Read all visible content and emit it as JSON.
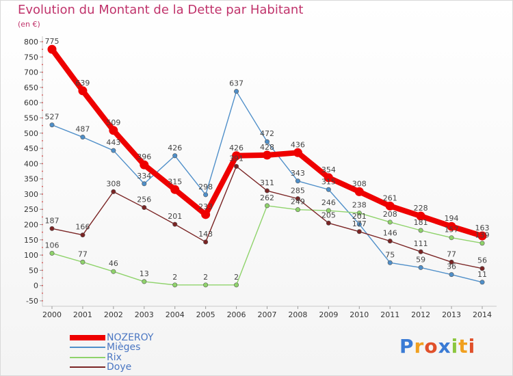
{
  "chart_data": {
    "type": "line",
    "title": "Evolution du Montant de la Dette par Habitant",
    "unit": "(en €)",
    "x": [
      "2000",
      "2001",
      "2002",
      "2003",
      "2004",
      "2005",
      "2006",
      "2007",
      "2008",
      "2009",
      "2010",
      "2011",
      "2012",
      "2013",
      "2014"
    ],
    "ylim": [
      -50,
      800
    ],
    "yticks": [
      -50,
      0,
      50,
      100,
      150,
      200,
      250,
      300,
      350,
      400,
      450,
      500,
      550,
      600,
      650,
      700,
      750,
      800
    ],
    "grid": false,
    "legend": "bottom-left",
    "series": [
      {
        "name": "NOZEROY",
        "color": "#ee0000",
        "values": [
          775,
          639,
          509,
          396,
          315,
          233,
          426,
          428,
          436,
          354,
          308,
          261,
          228,
          194,
          163
        ]
      },
      {
        "name": "Mièges",
        "color": "#4f8fc9",
        "values": [
          527,
          487,
          443,
          334,
          426,
          298,
          637,
          472,
          343,
          315,
          201,
          75,
          59,
          36,
          11
        ]
      },
      {
        "name": "Rix",
        "color": "#8fd36b",
        "values": [
          106,
          77,
          46,
          13,
          2,
          2,
          2,
          262,
          249,
          246,
          238,
          208,
          181,
          157,
          139
        ]
      },
      {
        "name": "Doye",
        "color": "#7a2424",
        "values": [
          187,
          166,
          308,
          256,
          201,
          143,
          391,
          311,
          285,
          205,
          177,
          146,
          111,
          77,
          56
        ]
      }
    ]
  },
  "brand": {
    "letters": [
      "P",
      "r",
      "o",
      "x",
      "i",
      "t",
      "i"
    ],
    "colors": [
      "#3a7bd5",
      "#f0a020",
      "#e0502a",
      "#3a7bd5",
      "#8cc63f",
      "#f0a020",
      "#e0502a"
    ]
  }
}
